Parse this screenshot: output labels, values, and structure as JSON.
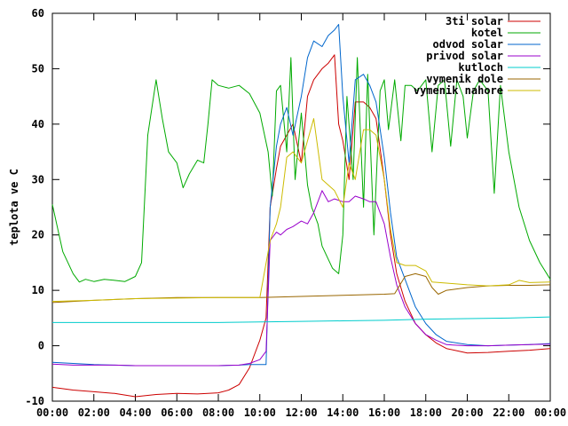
{
  "chart_data": {
    "type": "line",
    "title": "",
    "xlabel": "",
    "ylabel": "teplota ve C",
    "xlim": [
      0,
      24
    ],
    "ylim": [
      -10,
      60
    ],
    "grid": false,
    "legend_position": "top-right",
    "x_tick_labels": [
      "00:00",
      "02:00",
      "04:00",
      "06:00",
      "08:00",
      "10:00",
      "12:00",
      "14:00",
      "16:00",
      "18:00",
      "20:00",
      "22:00",
      "00:00"
    ],
    "y_tick_labels": [
      "-10",
      "0",
      "10",
      "20",
      "30",
      "40",
      "50",
      "60"
    ],
    "series": [
      {
        "name": "3ti solar",
        "color": "#cc0000",
        "points": [
          [
            0,
            -7.5
          ],
          [
            1,
            -8
          ],
          [
            2,
            -8.3
          ],
          [
            3,
            -8.6
          ],
          [
            4,
            -9.2
          ],
          [
            5,
            -8.8
          ],
          [
            6,
            -8.6
          ],
          [
            7,
            -8.7
          ],
          [
            8,
            -8.5
          ],
          [
            8.5,
            -8
          ],
          [
            9,
            -7
          ],
          [
            9.5,
            -4
          ],
          [
            10,
            1
          ],
          [
            10.3,
            5
          ],
          [
            10.5,
            25
          ],
          [
            10.8,
            32
          ],
          [
            11,
            36
          ],
          [
            11.3,
            38
          ],
          [
            11.6,
            40
          ],
          [
            12,
            33
          ],
          [
            12.3,
            45
          ],
          [
            12.6,
            48
          ],
          [
            13,
            50
          ],
          [
            13.3,
            51
          ],
          [
            13.6,
            52.5
          ],
          [
            13.8,
            40
          ],
          [
            14,
            37
          ],
          [
            14.3,
            30
          ],
          [
            14.6,
            44
          ],
          [
            15,
            44
          ],
          [
            15.3,
            43
          ],
          [
            15.6,
            41
          ],
          [
            16,
            30
          ],
          [
            16.3,
            20
          ],
          [
            16.6,
            13
          ],
          [
            17,
            8
          ],
          [
            17.5,
            4
          ],
          [
            18,
            2
          ],
          [
            18.5,
            0.5
          ],
          [
            19,
            -0.5
          ],
          [
            20,
            -1.3
          ],
          [
            21,
            -1.2
          ],
          [
            22,
            -1
          ],
          [
            23,
            -0.8
          ],
          [
            24,
            -0.5
          ]
        ]
      },
      {
        "name": "kotel",
        "color": "#00aa00",
        "points": [
          [
            0,
            25.5
          ],
          [
            0.5,
            17
          ],
          [
            1,
            13
          ],
          [
            1.3,
            11.5
          ],
          [
            1.6,
            12
          ],
          [
            2,
            11.6
          ],
          [
            2.5,
            12
          ],
          [
            3,
            11.8
          ],
          [
            3.5,
            11.6
          ],
          [
            4,
            12.5
          ],
          [
            4.3,
            15
          ],
          [
            4.6,
            38
          ],
          [
            5,
            48
          ],
          [
            5.3,
            41
          ],
          [
            5.6,
            35
          ],
          [
            6,
            33
          ],
          [
            6.3,
            28.5
          ],
          [
            6.6,
            31
          ],
          [
            7,
            33.5
          ],
          [
            7.3,
            33
          ],
          [
            7.5,
            40
          ],
          [
            7.7,
            48
          ],
          [
            8,
            47
          ],
          [
            8.5,
            46.5
          ],
          [
            9,
            47
          ],
          [
            9.5,
            45.5
          ],
          [
            10,
            42
          ],
          [
            10.4,
            35
          ],
          [
            10.6,
            27
          ],
          [
            10.8,
            46
          ],
          [
            11,
            47
          ],
          [
            11.3,
            35
          ],
          [
            11.5,
            52
          ],
          [
            11.7,
            30
          ],
          [
            12,
            42
          ],
          [
            12.3,
            29
          ],
          [
            12.5,
            25
          ],
          [
            12.8,
            22
          ],
          [
            13,
            18
          ],
          [
            13.5,
            14
          ],
          [
            13.8,
            13
          ],
          [
            14,
            20
          ],
          [
            14.2,
            45
          ],
          [
            14.5,
            30
          ],
          [
            14.7,
            52
          ],
          [
            15,
            25
          ],
          [
            15.2,
            49
          ],
          [
            15.5,
            20
          ],
          [
            15.8,
            46
          ],
          [
            16,
            48
          ],
          [
            16.2,
            39
          ],
          [
            16.5,
            48
          ],
          [
            16.8,
            37
          ],
          [
            17,
            47
          ],
          [
            17.3,
            47
          ],
          [
            17.6,
            46
          ],
          [
            18,
            48
          ],
          [
            18.3,
            35
          ],
          [
            18.6,
            47
          ],
          [
            18.9,
            48
          ],
          [
            19.2,
            36
          ],
          [
            19.5,
            48
          ],
          [
            19.8,
            45
          ],
          [
            20,
            37.5
          ],
          [
            20.3,
            46
          ],
          [
            20.6,
            48
          ],
          [
            21,
            46
          ],
          [
            21.3,
            27.5
          ],
          [
            21.6,
            47
          ],
          [
            22,
            35
          ],
          [
            22.5,
            25
          ],
          [
            23,
            19
          ],
          [
            23.5,
            15
          ],
          [
            24,
            12
          ]
        ]
      },
      {
        "name": "odvod solar",
        "color": "#0066cc",
        "points": [
          [
            0,
            -3
          ],
          [
            1,
            -3.2
          ],
          [
            2,
            -3.4
          ],
          [
            3,
            -3.5
          ],
          [
            4,
            -3.6
          ],
          [
            5,
            -3.6
          ],
          [
            6,
            -3.6
          ],
          [
            7,
            -3.6
          ],
          [
            8,
            -3.6
          ],
          [
            9,
            -3.5
          ],
          [
            9.5,
            -3.4
          ],
          [
            10,
            -3.4
          ],
          [
            10.3,
            -3.4
          ],
          [
            10.5,
            25
          ],
          [
            10.8,
            36
          ],
          [
            11,
            40
          ],
          [
            11.3,
            43
          ],
          [
            11.6,
            38
          ],
          [
            12,
            45
          ],
          [
            12.3,
            52
          ],
          [
            12.6,
            55
          ],
          [
            13,
            54
          ],
          [
            13.3,
            56
          ],
          [
            13.6,
            57
          ],
          [
            13.8,
            58
          ],
          [
            14,
            45
          ],
          [
            14.3,
            33
          ],
          [
            14.6,
            48
          ],
          [
            15,
            49
          ],
          [
            15.3,
            47
          ],
          [
            15.6,
            44
          ],
          [
            16,
            34
          ],
          [
            16.3,
            24
          ],
          [
            16.6,
            16
          ],
          [
            17,
            12
          ],
          [
            17.5,
            7
          ],
          [
            18,
            4
          ],
          [
            18.5,
            2
          ],
          [
            19,
            0.8
          ],
          [
            20,
            0.2
          ],
          [
            21,
            0
          ],
          [
            22,
            0.1
          ],
          [
            23,
            0.2
          ],
          [
            24,
            0.4
          ]
        ]
      },
      {
        "name": "privod solar",
        "color": "#9900cc",
        "points": [
          [
            0,
            -3.3
          ],
          [
            1,
            -3.5
          ],
          [
            2,
            -3.5
          ],
          [
            3,
            -3.5
          ],
          [
            4,
            -3.6
          ],
          [
            5,
            -3.6
          ],
          [
            6,
            -3.6
          ],
          [
            7,
            -3.6
          ],
          [
            8,
            -3.6
          ],
          [
            9,
            -3.5
          ],
          [
            9.5,
            -3.2
          ],
          [
            10,
            -2.5
          ],
          [
            10.3,
            -1
          ],
          [
            10.5,
            19
          ],
          [
            10.8,
            20.5
          ],
          [
            11,
            20
          ],
          [
            11.3,
            21
          ],
          [
            11.6,
            21.5
          ],
          [
            12,
            22.5
          ],
          [
            12.3,
            22
          ],
          [
            12.6,
            24
          ],
          [
            13,
            28
          ],
          [
            13.3,
            26
          ],
          [
            13.6,
            26.5
          ],
          [
            14,
            26
          ],
          [
            14.3,
            26
          ],
          [
            14.6,
            27
          ],
          [
            15,
            26.5
          ],
          [
            15.3,
            26
          ],
          [
            15.6,
            26
          ],
          [
            16,
            22
          ],
          [
            16.3,
            16
          ],
          [
            16.6,
            11
          ],
          [
            17,
            7
          ],
          [
            17.5,
            4
          ],
          [
            18,
            2
          ],
          [
            18.5,
            1
          ],
          [
            19,
            0.2
          ],
          [
            20,
            0
          ],
          [
            21,
            0
          ],
          [
            22,
            0.1
          ],
          [
            23,
            0.2
          ],
          [
            24,
            0.3
          ]
        ]
      },
      {
        "name": "kutloch",
        "color": "#00cccc",
        "points": [
          [
            0,
            4.2
          ],
          [
            2,
            4.2
          ],
          [
            4,
            4.2
          ],
          [
            6,
            4.2
          ],
          [
            8,
            4.2
          ],
          [
            10,
            4.3
          ],
          [
            12,
            4.4
          ],
          [
            14,
            4.5
          ],
          [
            16,
            4.6
          ],
          [
            18,
            4.8
          ],
          [
            20,
            4.9
          ],
          [
            22,
            5
          ],
          [
            24,
            5.2
          ]
        ]
      },
      {
        "name": "vymenik dole",
        "color": "#996600",
        "points": [
          [
            0,
            7.8
          ],
          [
            2,
            8.2
          ],
          [
            4,
            8.5
          ],
          [
            6,
            8.7
          ],
          [
            8,
            8.7
          ],
          [
            10,
            8.7
          ],
          [
            11,
            8.8
          ],
          [
            12,
            8.9
          ],
          [
            14,
            9.1
          ],
          [
            16,
            9.3
          ],
          [
            16.5,
            9.4
          ],
          [
            17,
            12.5
          ],
          [
            17.5,
            13
          ],
          [
            18,
            12.5
          ],
          [
            18.3,
            10.5
          ],
          [
            18.6,
            9.3
          ],
          [
            19,
            10
          ],
          [
            20,
            10.5
          ],
          [
            21,
            10.8
          ],
          [
            22,
            10.9
          ],
          [
            23,
            10.9
          ],
          [
            24,
            11
          ]
        ]
      },
      {
        "name": "vymenik nahore",
        "color": "#ccbb00",
        "points": [
          [
            0,
            8
          ],
          [
            2,
            8.2
          ],
          [
            4,
            8.5
          ],
          [
            6,
            8.6
          ],
          [
            8,
            8.7
          ],
          [
            10,
            8.7
          ],
          [
            10.5,
            19
          ],
          [
            10.8,
            22
          ],
          [
            11,
            25
          ],
          [
            11.3,
            34
          ],
          [
            11.6,
            35
          ],
          [
            12,
            33
          ],
          [
            12.3,
            37
          ],
          [
            12.6,
            41
          ],
          [
            13,
            30
          ],
          [
            13.3,
            29
          ],
          [
            13.6,
            28
          ],
          [
            14,
            25
          ],
          [
            14.3,
            33
          ],
          [
            14.6,
            30
          ],
          [
            15,
            39
          ],
          [
            15.3,
            39
          ],
          [
            15.6,
            38
          ],
          [
            16,
            30
          ],
          [
            16.3,
            21
          ],
          [
            16.6,
            15
          ],
          [
            17,
            14.5
          ],
          [
            17.5,
            14.5
          ],
          [
            18,
            13.5
          ],
          [
            18.3,
            11.5
          ],
          [
            19,
            11.3
          ],
          [
            20,
            11
          ],
          [
            21,
            10.8
          ],
          [
            22,
            11
          ],
          [
            22.5,
            11.8
          ],
          [
            23,
            11.4
          ],
          [
            24,
            11.5
          ]
        ]
      }
    ]
  }
}
